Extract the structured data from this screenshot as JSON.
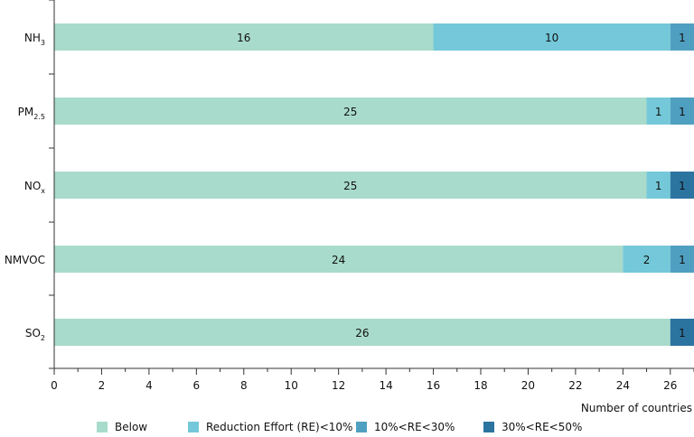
{
  "chart_data": {
    "type": "bar",
    "orientation": "horizontal",
    "stacked": true,
    "categories": [
      {
        "main": "NH",
        "sub": "3"
      },
      {
        "main": "PM",
        "sub": "2.5"
      },
      {
        "main": "NO",
        "sub": "x"
      },
      {
        "main": "NMVOC",
        "sub": ""
      },
      {
        "main": "SO",
        "sub": "2"
      }
    ],
    "series": [
      {
        "name": "Below",
        "color": "#a8dbcb",
        "values": [
          16,
          25,
          25,
          24,
          26
        ]
      },
      {
        "name": "Reduction Effort (RE)<10%",
        "color": "#74c8d9",
        "values": [
          10,
          1,
          1,
          2,
          0
        ]
      },
      {
        "name": "10%<RE<30%",
        "color": "#4f9fc0",
        "values": [
          1,
          1,
          0,
          1,
          0
        ]
      },
      {
        "name": "30%<RE<50%",
        "color": "#2c74a0",
        "values": [
          0,
          0,
          1,
          0,
          1
        ]
      }
    ],
    "xlabel": "Number of countries",
    "xlim": [
      0,
      27
    ],
    "xticks": [
      0,
      2,
      4,
      6,
      8,
      10,
      12,
      14,
      16,
      18,
      20,
      22,
      24,
      26
    ],
    "legend_position": "bottom"
  }
}
